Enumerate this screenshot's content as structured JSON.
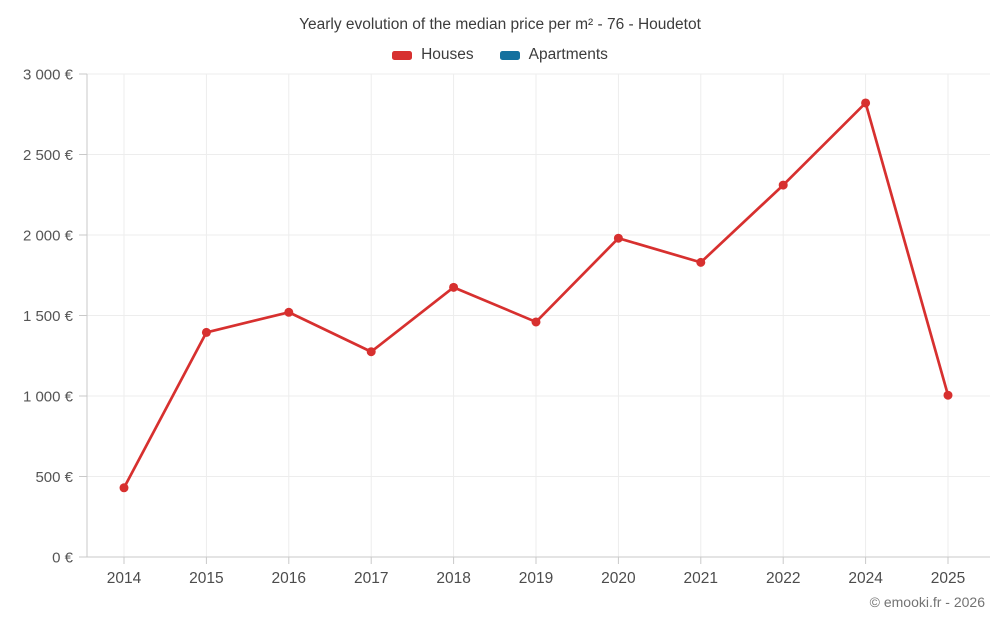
{
  "chart_data": {
    "type": "line",
    "title": "Yearly evolution of the median price per m² - 76 - Houdetot",
    "categories": [
      "2014",
      "2015",
      "2016",
      "2017",
      "2018",
      "2019",
      "2020",
      "2021",
      "2022",
      "2024",
      "2025"
    ],
    "series": [
      {
        "name": "Houses",
        "color": "#d7302f",
        "values": [
          430,
          1395,
          1520,
          1275,
          1675,
          1460,
          1980,
          1830,
          2310,
          2820,
          1005
        ]
      },
      {
        "name": "Apartments",
        "color": "#15719f",
        "values": []
      }
    ],
    "xlabel": "",
    "ylabel": "",
    "ylim": [
      0,
      3000
    ],
    "y_tick_step": 500,
    "y_ticks": [
      "0 €",
      "500 €",
      "1 000 €",
      "1 500 €",
      "2 000 €",
      "2 500 €",
      "3 000 €"
    ],
    "grid": true,
    "legend_position": "top",
    "colors": {
      "grid": "#ededed",
      "axis": "#c9c9c9",
      "title_text": "#3c3c3c",
      "tick_text": "#555555",
      "watermark_text": "#737373",
      "background": "#ffffff"
    },
    "watermark": "© emooki.fr - 2026"
  }
}
